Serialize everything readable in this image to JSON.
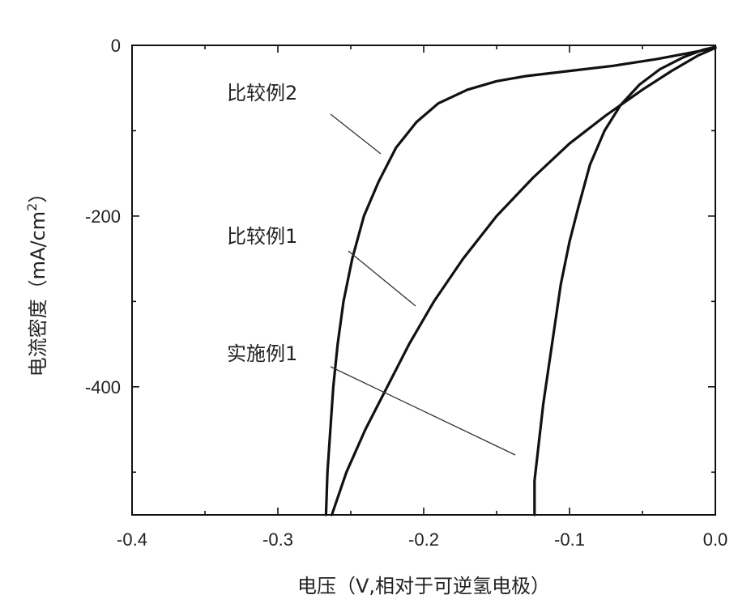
{
  "chart_data": {
    "type": "line",
    "xlabel": "电压（V,相对于可逆氢电极）",
    "ylabel": "电流密度（mA/cm",
    "ylabel_sup": "2",
    "ylabel_close": "）",
    "xlim": [
      -0.4,
      0.0
    ],
    "ylim": [
      -550,
      0
    ],
    "x_ticks": [
      -0.4,
      -0.3,
      -0.2,
      -0.1,
      0.0
    ],
    "x_tick_labels": [
      "-0.4",
      "-0.3",
      "-0.2",
      "-0.1",
      "0.0"
    ],
    "y_ticks": [
      0,
      -200,
      -400
    ],
    "y_tick_labels": [
      "0",
      "-200",
      "-400"
    ],
    "series": [
      {
        "name": "比较例2",
        "x": [
          -0.267,
          -0.266,
          -0.264,
          -0.262,
          -0.259,
          -0.255,
          -0.249,
          -0.241,
          -0.231,
          -0.219,
          -0.205,
          -0.19,
          -0.17,
          -0.15,
          -0.13,
          -0.1,
          -0.07,
          -0.04,
          -0.015,
          0.0
        ],
        "y": [
          -550,
          -500,
          -450,
          -400,
          -350,
          -300,
          -250,
          -200,
          -160,
          -120,
          -90,
          -68,
          -52,
          -42,
          -36,
          -30,
          -24,
          -16,
          -8,
          -3
        ]
      },
      {
        "name": "比较例1",
        "x": [
          -0.263,
          -0.253,
          -0.24,
          -0.225,
          -0.21,
          -0.193,
          -0.173,
          -0.15,
          -0.125,
          -0.1,
          -0.075,
          -0.05,
          -0.03,
          -0.012,
          0.0
        ],
        "y": [
          -550,
          -500,
          -450,
          -400,
          -350,
          -300,
          -250,
          -200,
          -155,
          -115,
          -82,
          -52,
          -30,
          -12,
          -3
        ]
      },
      {
        "name": "实施例1",
        "x": [
          -0.124,
          -0.124,
          -0.122,
          -0.118,
          -0.112,
          -0.106,
          -0.1,
          -0.094,
          -0.086,
          -0.076,
          -0.065,
          -0.052,
          -0.038,
          -0.022,
          -0.008,
          0.0
        ],
        "y": [
          -550,
          -510,
          -480,
          -420,
          -350,
          -280,
          -230,
          -190,
          -140,
          -100,
          -70,
          -46,
          -28,
          -14,
          -5,
          -2
        ]
      }
    ],
    "annotations": [
      {
        "text": "比较例2",
        "series": "比较例2"
      },
      {
        "text": "比较例1",
        "series": "比较例1"
      },
      {
        "text": "实施例1",
        "series": "实施例1"
      }
    ]
  }
}
